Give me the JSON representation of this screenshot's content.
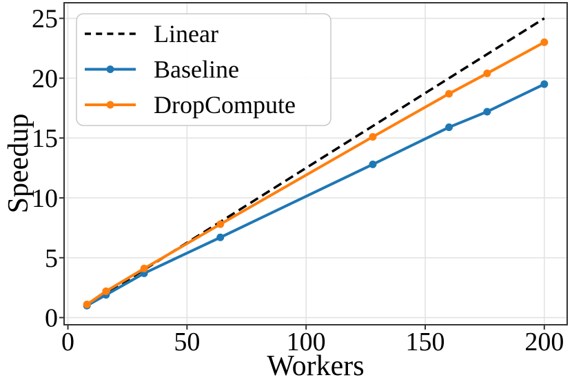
{
  "chart_data": {
    "type": "line",
    "title": "",
    "xlabel": "Workers",
    "ylabel": "Speedup",
    "x": [
      8,
      16,
      32,
      64,
      128,
      160,
      176,
      200
    ],
    "series": [
      {
        "name": "Linear",
        "color": "#000000",
        "line_style": "dashed",
        "markers": false,
        "values": [
          1,
          2,
          4,
          8,
          16,
          20,
          22,
          25
        ]
      },
      {
        "name": "Baseline",
        "color": "#1f77b4",
        "line_style": "solid",
        "markers": true,
        "values": [
          1.0,
          1.9,
          3.7,
          6.7,
          12.8,
          15.9,
          17.2,
          19.5
        ]
      },
      {
        "name": "DropCompute",
        "color": "#ff7f0e",
        "line_style": "solid",
        "markers": true,
        "values": [
          1.1,
          2.2,
          4.1,
          7.8,
          15.1,
          18.7,
          20.4,
          23.0
        ]
      }
    ],
    "xticks": [
      0,
      50,
      100,
      150,
      200
    ],
    "yticks": [
      0,
      5,
      10,
      15,
      20,
      25
    ],
    "xlim": [
      -1.6,
      209.6
    ],
    "ylim": [
      -0.6,
      26.3
    ],
    "grid": true,
    "grid_color": "#e3e3e3",
    "spine_color": "#333333",
    "legend_position": "upper left",
    "legend_labels": [
      "Linear",
      "Baseline",
      "DropCompute"
    ]
  }
}
